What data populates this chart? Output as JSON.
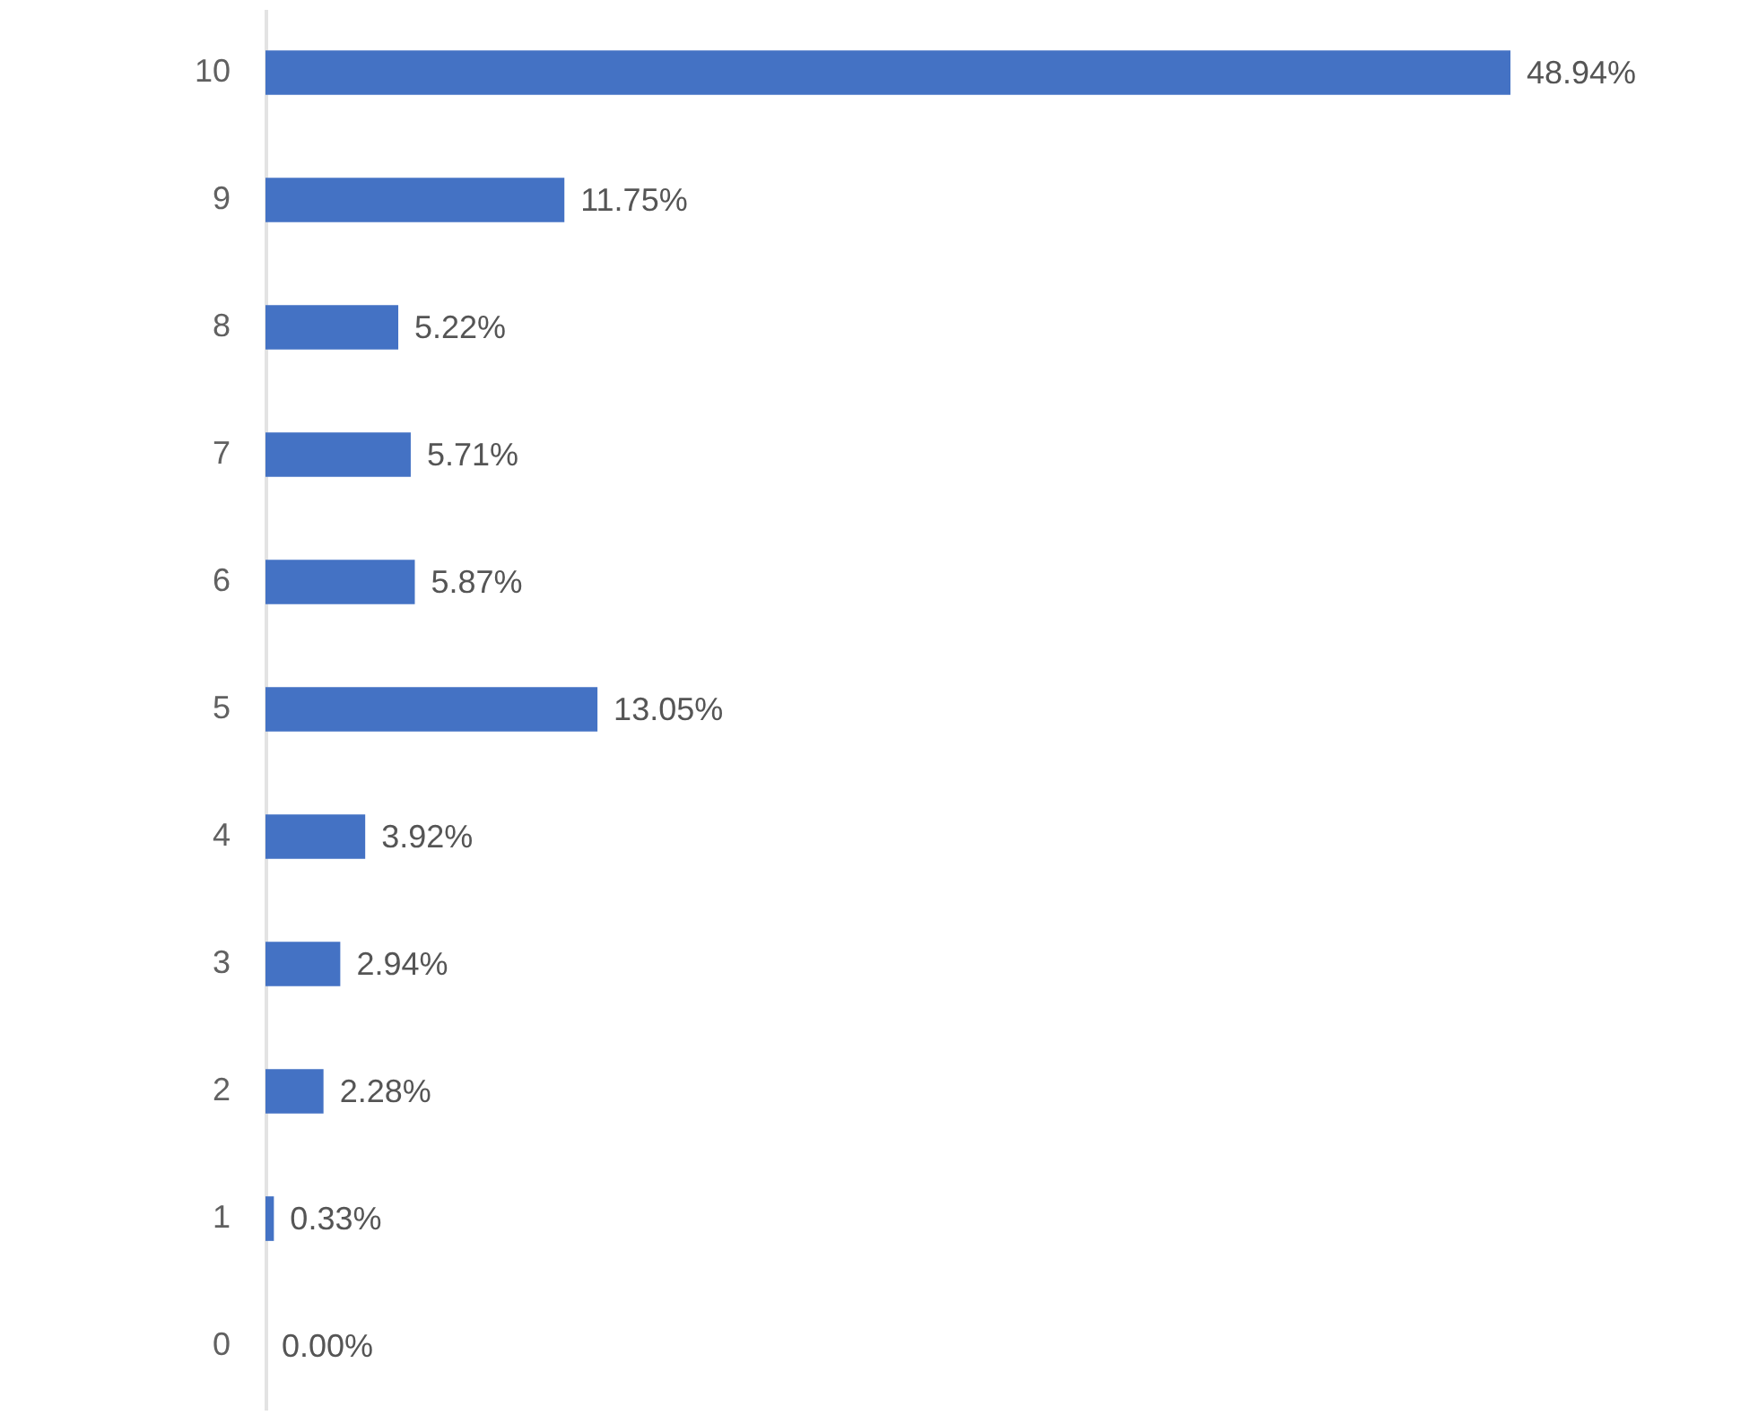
{
  "chart_data": {
    "type": "bar",
    "orientation": "horizontal",
    "color": "#4472c4",
    "categories": [
      "10",
      "9",
      "8",
      "7",
      "6",
      "5",
      "4",
      "3",
      "2",
      "1",
      "0"
    ],
    "values": [
      48.94,
      11.75,
      5.22,
      5.71,
      5.87,
      13.05,
      3.92,
      2.94,
      2.28,
      0.33,
      0.0
    ],
    "value_labels": [
      "48.94%",
      "11.75%",
      "5.22%",
      "5.71%",
      "5.87%",
      "13.05%",
      "3.92%",
      "2.94%",
      "2.28%",
      "0.33%",
      "0.00%"
    ]
  }
}
